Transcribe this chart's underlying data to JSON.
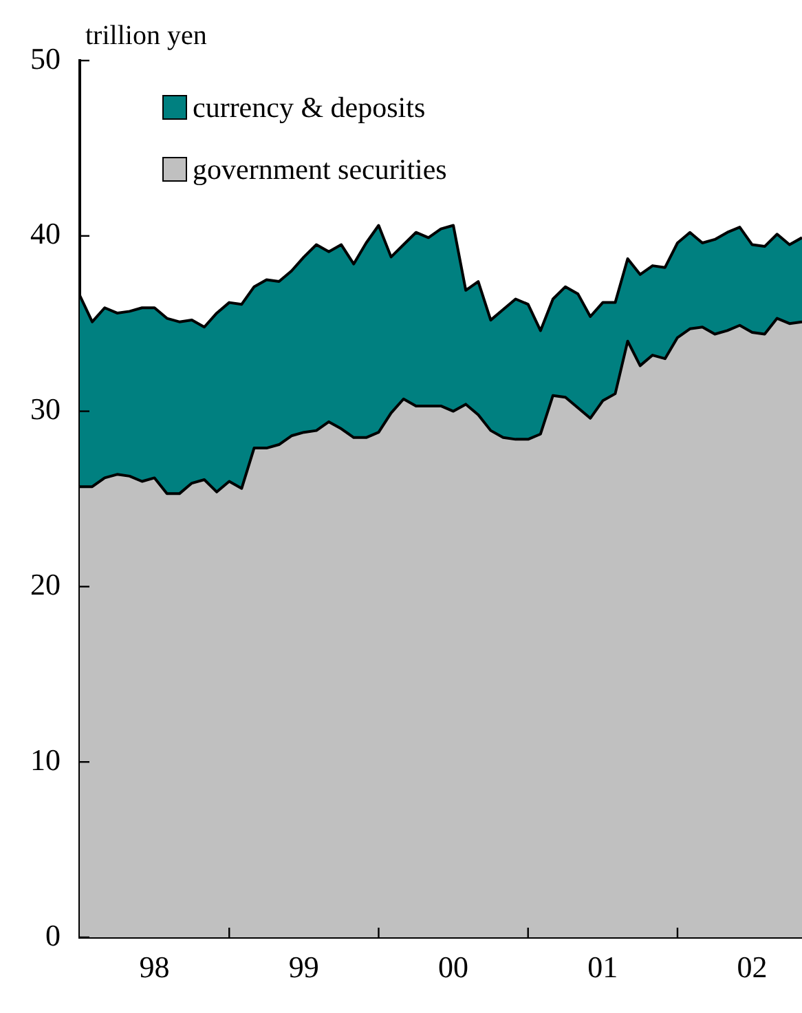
{
  "chart_data": {
    "type": "area",
    "stacked": true,
    "ylabel": "trillion yen",
    "x": [
      "1998-01",
      "1998-02",
      "1998-03",
      "1998-04",
      "1998-05",
      "1998-06",
      "1998-07",
      "1998-08",
      "1998-09",
      "1998-10",
      "1998-11",
      "1998-12",
      "1999-01",
      "1999-02",
      "1999-03",
      "1999-04",
      "1999-05",
      "1999-06",
      "1999-07",
      "1999-08",
      "1999-09",
      "1999-10",
      "1999-11",
      "1999-12",
      "2000-01",
      "2000-02",
      "2000-03",
      "2000-04",
      "2000-05",
      "2000-06",
      "2000-07",
      "2000-08",
      "2000-09",
      "2000-10",
      "2000-11",
      "2000-12",
      "2001-01",
      "2001-02",
      "2001-03",
      "2001-04",
      "2001-05",
      "2001-06",
      "2001-07",
      "2001-08",
      "2001-09",
      "2001-10",
      "2001-11",
      "2001-12",
      "2002-01",
      "2002-02",
      "2002-03",
      "2002-04",
      "2002-05",
      "2002-06",
      "2002-07",
      "2002-08",
      "2002-09",
      "2002-10",
      "2002-11"
    ],
    "series": [
      {
        "name": "government securities",
        "color": "#c0c0c0",
        "values": [
          25.7,
          25.7,
          26.2,
          26.4,
          26.3,
          26.0,
          26.2,
          25.3,
          25.3,
          25.9,
          26.1,
          25.4,
          26.0,
          25.6,
          27.9,
          27.9,
          28.1,
          28.6,
          28.8,
          28.9,
          29.4,
          29.0,
          28.5,
          28.5,
          28.8,
          29.9,
          30.7,
          30.3,
          30.3,
          30.3,
          30.0,
          30.4,
          29.8,
          28.9,
          28.5,
          28.4,
          28.4,
          28.7,
          30.9,
          30.8,
          30.2,
          29.6,
          30.6,
          31.0,
          34.0,
          32.6,
          33.2,
          33.0,
          34.2,
          34.7,
          34.8,
          34.4,
          34.6,
          34.9,
          34.5,
          34.4,
          35.3,
          35.0,
          35.1
        ]
      },
      {
        "name": "currency & deposits",
        "color": "#008080",
        "values": [
          10.9,
          9.4,
          9.7,
          9.2,
          9.4,
          9.9,
          9.7,
          10.0,
          9.8,
          9.3,
          8.7,
          10.2,
          10.2,
          10.5,
          9.2,
          9.6,
          9.3,
          9.4,
          10.0,
          10.6,
          9.7,
          10.5,
          9.9,
          11.1,
          11.8,
          8.9,
          8.8,
          9.9,
          9.6,
          10.1,
          10.6,
          6.5,
          7.6,
          6.3,
          7.3,
          8.0,
          7.7,
          5.9,
          5.5,
          6.3,
          6.5,
          5.8,
          5.6,
          5.2,
          4.7,
          5.2,
          5.1,
          5.2,
          5.4,
          5.5,
          4.8,
          5.4,
          5.6,
          5.6,
          5.0,
          5.0,
          4.8,
          4.5,
          4.8
        ]
      }
    ],
    "xlim": [
      "1998-01",
      "2002-11"
    ],
    "xticks": [
      {
        "value": "1998-07",
        "label": "98"
      },
      {
        "value": "1999-01",
        "label": null
      },
      {
        "value": "1999-07",
        "label": "99"
      },
      {
        "value": "2000-01",
        "label": null
      },
      {
        "value": "2000-07",
        "label": "00"
      },
      {
        "value": "2001-01",
        "label": null
      },
      {
        "value": "2001-07",
        "label": "01"
      },
      {
        "value": "2002-01",
        "label": null
      },
      {
        "value": "2002-07",
        "label": "02"
      }
    ],
    "ylim": [
      0,
      50
    ],
    "yticks": [
      0,
      10,
      20,
      30,
      40,
      50
    ],
    "legend": "top left",
    "marker": "none"
  }
}
